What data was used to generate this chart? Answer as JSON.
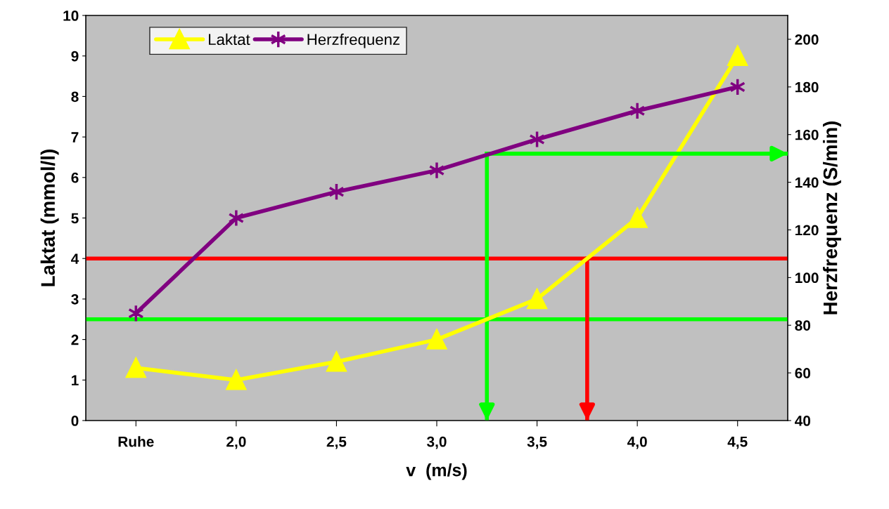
{
  "chart_data": {
    "type": "line",
    "xlabel": "v  (m/s)",
    "ylabel": "Laktat (mmol/l)",
    "y2label": "Herzfrequenz (S/min)",
    "x": [
      1.5,
      2.0,
      2.5,
      3.0,
      3.5,
      4.0,
      4.5
    ],
    "xlim": [
      1.25,
      4.75
    ],
    "xticks": [
      {
        "value": 1.5,
        "label": "Ruhe"
      },
      {
        "value": 2.0,
        "label": "2,0"
      },
      {
        "value": 2.5,
        "label": "2,5"
      },
      {
        "value": 3.0,
        "label": "3,0"
      },
      {
        "value": 3.5,
        "label": "3,5"
      },
      {
        "value": 4.0,
        "label": "4,0"
      },
      {
        "value": 4.5,
        "label": "4,5"
      }
    ],
    "ylim": [
      0,
      10
    ],
    "yticks": [
      0,
      1,
      2,
      3,
      4,
      5,
      6,
      7,
      8,
      9,
      10
    ],
    "y2lim": [
      40,
      210
    ],
    "y2ticks": [
      40,
      60,
      80,
      100,
      120,
      140,
      160,
      180,
      200
    ],
    "series": [
      {
        "name": "Laktat",
        "color": "#ffff00",
        "marker": "triangle",
        "values": [
          1.3,
          1.0,
          1.45,
          2.0,
          3.0,
          5.0,
          9.0
        ]
      },
      {
        "name": "Herzfrequenz",
        "color": "#800080",
        "marker": "cross",
        "axis": "y2",
        "values": [
          85,
          125,
          136,
          145,
          158,
          170,
          180
        ]
      }
    ],
    "ref_lines": [
      {
        "axis": "y",
        "value": 4,
        "color": "#ff0000"
      },
      {
        "axis": "y",
        "value": 2.5,
        "color": "#00ff00"
      },
      {
        "axis": "x",
        "value": 3.25,
        "color": "#00ff00"
      },
      {
        "axis": "x",
        "value": 3.75,
        "color": "#ff0000"
      },
      {
        "axis": "y2",
        "value": 152,
        "color": "#00ff00"
      }
    ],
    "legend": "top left",
    "grid": false
  }
}
